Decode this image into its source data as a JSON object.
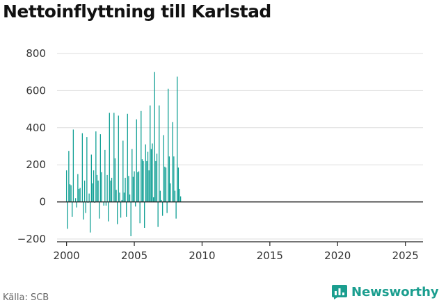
{
  "title": "Nettoinflyttning till Karlstad",
  "source": "Källa: SCB",
  "brand": "Newsworthy",
  "colors": {
    "bar": "#12a095",
    "grid": "#dddddd",
    "axis": "#222222",
    "brand": "#1b9e8f"
  },
  "chart_data": {
    "type": "bar",
    "title": "Nettoinflyttning till Karlstad",
    "xlabel": "",
    "ylabel": "",
    "ylim": [
      -200,
      800
    ],
    "xlim": [
      1999.3,
      2026.3
    ],
    "yticks": [
      -200,
      0,
      200,
      400,
      600,
      800
    ],
    "ytick_labels": [
      "−200",
      "0",
      "200",
      "400",
      "600",
      "800"
    ],
    "xticks": [
      2000,
      2005,
      2010,
      2015,
      2020,
      2025
    ],
    "xtick_labels": [
      "2000",
      "2005",
      "2010",
      "2015",
      "2020",
      "2025"
    ],
    "grid": "horizontal",
    "frequency": "monthly",
    "start": "2000-01",
    "values": [
      170,
      -145,
      275,
      95,
      90,
      -80,
      390,
      0,
      20,
      -30,
      150,
      70,
      75,
      0,
      370,
      -95,
      115,
      -60,
      350,
      -5,
      45,
      -165,
      255,
      100,
      170,
      -5,
      380,
      145,
      115,
      -90,
      365,
      160,
      0,
      -20,
      280,
      -20,
      145,
      -105,
      480,
      115,
      130,
      0,
      480,
      235,
      65,
      -120,
      465,
      50,
      -85,
      10,
      330,
      50,
      130,
      -80,
      475,
      140,
      40,
      -185,
      285,
      135,
      165,
      -25,
      445,
      160,
      165,
      -115,
      490,
      230,
      220,
      -140,
      310,
      220,
      270,
      170,
      520,
      285,
      315,
      25,
      700,
      220,
      260,
      -135,
      520,
      60,
      10,
      -75,
      360,
      190,
      185,
      -60,
      610,
      245,
      100,
      0,
      430,
      245,
      60,
      -90,
      675,
      185,
      70,
      30
    ]
  }
}
